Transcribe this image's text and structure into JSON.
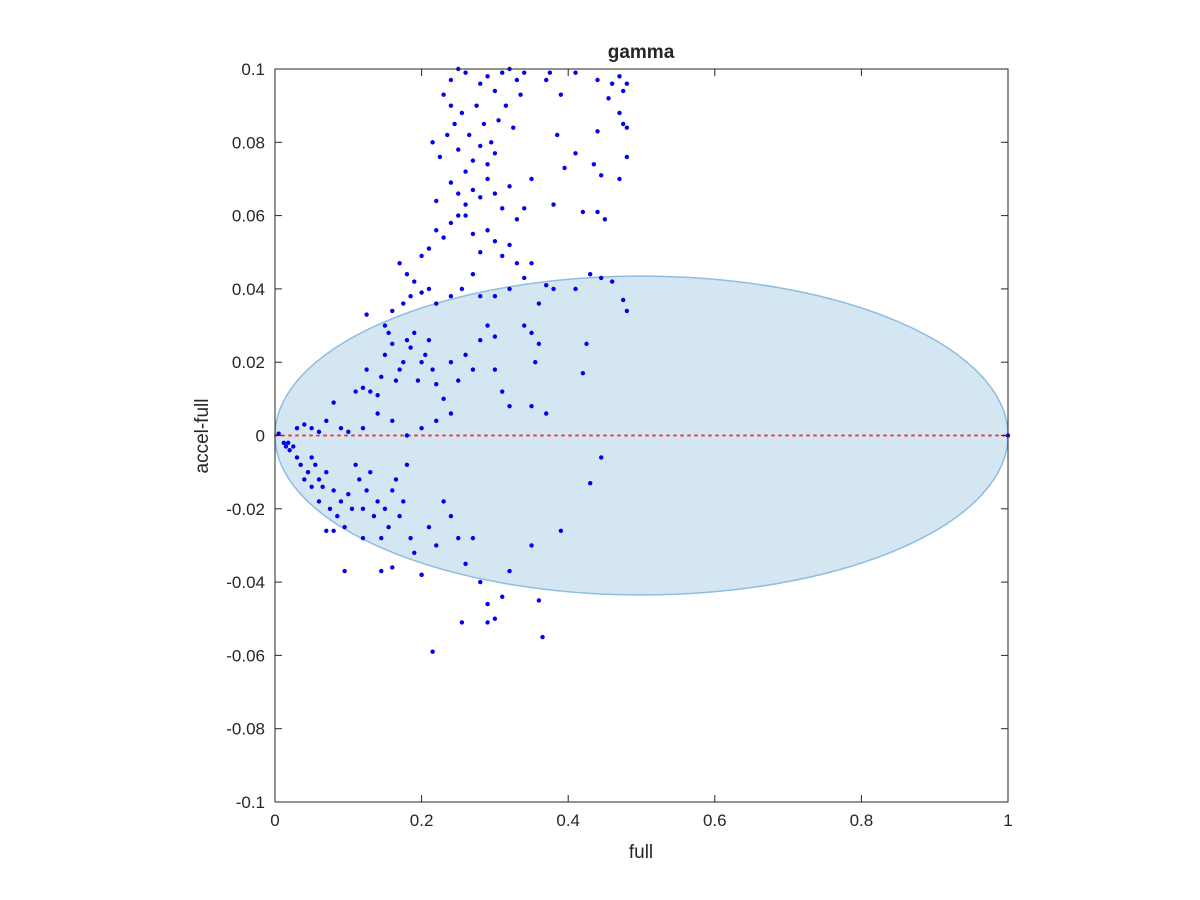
{
  "chart_data": {
    "type": "scatter",
    "title": "gamma",
    "xlabel": "full",
    "ylabel": "accel-full",
    "xlim": [
      0,
      1
    ],
    "ylim": [
      -0.1,
      0.1
    ],
    "xticks": [
      0,
      0.2,
      0.4,
      0.6,
      0.8,
      1
    ],
    "xtick_labels": [
      "0",
      "0.2",
      "0.4",
      "0.6",
      "0.8",
      "1"
    ],
    "yticks": [
      -0.1,
      -0.08,
      -0.06,
      -0.04,
      -0.02,
      0,
      0.02,
      0.04,
      0.06,
      0.08,
      0.1
    ],
    "ytick_labels": [
      "-0.1",
      "-0.08",
      "-0.06",
      "-0.04",
      "-0.02",
      "0",
      "0.02",
      "0.04",
      "0.06",
      "0.08",
      "0.1"
    ],
    "grid": false,
    "box": true,
    "reference_line": {
      "y": 0,
      "style": "dotted",
      "color": "#e8453c"
    },
    "ellipse": {
      "cx": 0.5,
      "cy": 0.0,
      "rx": 0.5,
      "ry": 0.0435,
      "fill": "#d5e6f3",
      "stroke": "#8fbde0"
    },
    "points_color": "#0000ee",
    "points": [
      [
        0.005,
        0.0005
      ],
      [
        0.012,
        -0.002
      ],
      [
        0.015,
        -0.003
      ],
      [
        0.02,
        -0.004
      ],
      [
        0.018,
        -0.002
      ],
      [
        0.025,
        -0.003
      ],
      [
        0.03,
        -0.006
      ],
      [
        0.035,
        -0.008
      ],
      [
        0.04,
        -0.012
      ],
      [
        0.045,
        -0.01
      ],
      [
        0.05,
        -0.006
      ],
      [
        0.055,
        -0.008
      ],
      [
        0.06,
        -0.012
      ],
      [
        0.065,
        -0.014
      ],
      [
        0.07,
        -0.01
      ],
      [
        0.075,
        -0.02
      ],
      [
        0.08,
        -0.015
      ],
      [
        0.085,
        -0.022
      ],
      [
        0.09,
        -0.018
      ],
      [
        0.095,
        -0.025
      ],
      [
        0.1,
        -0.016
      ],
      [
        0.105,
        -0.02
      ],
      [
        0.11,
        -0.008
      ],
      [
        0.115,
        -0.012
      ],
      [
        0.12,
        -0.02
      ],
      [
        0.125,
        -0.015
      ],
      [
        0.13,
        -0.01
      ],
      [
        0.135,
        -0.022
      ],
      [
        0.14,
        -0.018
      ],
      [
        0.145,
        -0.028
      ],
      [
        0.15,
        -0.02
      ],
      [
        0.155,
        -0.025
      ],
      [
        0.16,
        -0.015
      ],
      [
        0.165,
        -0.012
      ],
      [
        0.17,
        -0.022
      ],
      [
        0.175,
        -0.018
      ],
      [
        0.18,
        -0.008
      ],
      [
        0.185,
        -0.028
      ],
      [
        0.19,
        -0.032
      ],
      [
        0.2,
        -0.038
      ],
      [
        0.21,
        -0.025
      ],
      [
        0.22,
        -0.03
      ],
      [
        0.23,
        -0.018
      ],
      [
        0.24,
        -0.022
      ],
      [
        0.25,
        -0.028
      ],
      [
        0.26,
        -0.035
      ],
      [
        0.27,
        -0.028
      ],
      [
        0.28,
        -0.04
      ],
      [
        0.29,
        -0.046
      ],
      [
        0.3,
        -0.05
      ],
      [
        0.32,
        -0.037
      ],
      [
        0.35,
        -0.03
      ],
      [
        0.36,
        -0.045
      ],
      [
        0.365,
        -0.055
      ],
      [
        0.215,
        -0.059
      ],
      [
        0.255,
        -0.051
      ],
      [
        0.29,
        -0.051
      ],
      [
        0.31,
        -0.044
      ],
      [
        0.39,
        -0.026
      ],
      [
        0.43,
        -0.013
      ],
      [
        0.445,
        -0.006
      ],
      [
        0.2,
        -0.038
      ],
      [
        0.16,
        -0.036
      ],
      [
        0.145,
        -0.037
      ],
      [
        0.095,
        -0.037
      ],
      [
        0.12,
        -0.028
      ],
      [
        0.08,
        -0.026
      ],
      [
        0.07,
        -0.026
      ],
      [
        0.06,
        -0.018
      ],
      [
        0.05,
        -0.014
      ],
      [
        0.03,
        0.002
      ],
      [
        0.04,
        0.003
      ],
      [
        0.05,
        0.002
      ],
      [
        0.06,
        0.001
      ],
      [
        0.07,
        0.004
      ],
      [
        0.08,
        0.009
      ],
      [
        0.09,
        0.002
      ],
      [
        0.1,
        0.001
      ],
      [
        0.11,
        0.012
      ],
      [
        0.12,
        0.013
      ],
      [
        0.125,
        0.018
      ],
      [
        0.13,
        0.012
      ],
      [
        0.14,
        0.011
      ],
      [
        0.145,
        0.016
      ],
      [
        0.15,
        0.022
      ],
      [
        0.155,
        0.028
      ],
      [
        0.16,
        0.025
      ],
      [
        0.165,
        0.015
      ],
      [
        0.17,
        0.018
      ],
      [
        0.175,
        0.02
      ],
      [
        0.18,
        0.026
      ],
      [
        0.185,
        0.024
      ],
      [
        0.19,
        0.028
      ],
      [
        0.195,
        0.015
      ],
      [
        0.2,
        0.02
      ],
      [
        0.205,
        0.022
      ],
      [
        0.21,
        0.026
      ],
      [
        0.215,
        0.018
      ],
      [
        0.22,
        0.014
      ],
      [
        0.23,
        0.01
      ],
      [
        0.24,
        0.02
      ],
      [
        0.25,
        0.015
      ],
      [
        0.26,
        0.022
      ],
      [
        0.27,
        0.018
      ],
      [
        0.28,
        0.026
      ],
      [
        0.29,
        0.03
      ],
      [
        0.3,
        0.018
      ],
      [
        0.31,
        0.012
      ],
      [
        0.32,
        0.008
      ],
      [
        0.34,
        0.03
      ],
      [
        0.355,
        0.02
      ],
      [
        0.37,
        0.006
      ],
      [
        0.35,
        0.008
      ],
      [
        0.24,
        0.006
      ],
      [
        0.22,
        0.004
      ],
      [
        0.2,
        0.002
      ],
      [
        0.18,
        0.0
      ],
      [
        0.16,
        0.004
      ],
      [
        0.14,
        0.006
      ],
      [
        0.12,
        0.002
      ],
      [
        0.125,
        0.033
      ],
      [
        0.15,
        0.03
      ],
      [
        0.16,
        0.034
      ],
      [
        0.175,
        0.036
      ],
      [
        0.185,
        0.038
      ],
      [
        0.19,
        0.042
      ],
      [
        0.2,
        0.039
      ],
      [
        0.21,
        0.04
      ],
      [
        0.22,
        0.036
      ],
      [
        0.24,
        0.038
      ],
      [
        0.255,
        0.04
      ],
      [
        0.27,
        0.044
      ],
      [
        0.28,
        0.038
      ],
      [
        0.3,
        0.038
      ],
      [
        0.32,
        0.04
      ],
      [
        0.34,
        0.043
      ],
      [
        0.36,
        0.036
      ],
      [
        0.37,
        0.041
      ],
      [
        0.38,
        0.04
      ],
      [
        0.41,
        0.04
      ],
      [
        0.43,
        0.044
      ],
      [
        0.445,
        0.043
      ],
      [
        0.46,
        0.042
      ],
      [
        0.475,
        0.037
      ],
      [
        0.48,
        0.034
      ],
      [
        0.425,
        0.025
      ],
      [
        0.42,
        0.017
      ],
      [
        0.35,
        0.028
      ],
      [
        0.36,
        0.025
      ],
      [
        0.3,
        0.027
      ],
      [
        0.17,
        0.047
      ],
      [
        0.18,
        0.044
      ],
      [
        0.2,
        0.049
      ],
      [
        0.21,
        0.051
      ],
      [
        0.22,
        0.056
      ],
      [
        0.23,
        0.054
      ],
      [
        0.24,
        0.058
      ],
      [
        0.25,
        0.06
      ],
      [
        0.26,
        0.063
      ],
      [
        0.27,
        0.067
      ],
      [
        0.28,
        0.065
      ],
      [
        0.29,
        0.07
      ],
      [
        0.3,
        0.066
      ],
      [
        0.31,
        0.062
      ],
      [
        0.32,
        0.068
      ],
      [
        0.33,
        0.059
      ],
      [
        0.34,
        0.062
      ],
      [
        0.35,
        0.07
      ],
      [
        0.22,
        0.064
      ],
      [
        0.24,
        0.069
      ],
      [
        0.25,
        0.066
      ],
      [
        0.26,
        0.06
      ],
      [
        0.27,
        0.055
      ],
      [
        0.28,
        0.05
      ],
      [
        0.29,
        0.056
      ],
      [
        0.3,
        0.053
      ],
      [
        0.31,
        0.049
      ],
      [
        0.32,
        0.052
      ],
      [
        0.33,
        0.047
      ],
      [
        0.35,
        0.047
      ],
      [
        0.215,
        0.08
      ],
      [
        0.225,
        0.076
      ],
      [
        0.235,
        0.082
      ],
      [
        0.245,
        0.085
      ],
      [
        0.255,
        0.088
      ],
      [
        0.265,
        0.082
      ],
      [
        0.275,
        0.09
      ],
      [
        0.285,
        0.085
      ],
      [
        0.295,
        0.08
      ],
      [
        0.305,
        0.086
      ],
      [
        0.315,
        0.09
      ],
      [
        0.325,
        0.084
      ],
      [
        0.335,
        0.093
      ],
      [
        0.24,
        0.09
      ],
      [
        0.25,
        0.078
      ],
      [
        0.26,
        0.072
      ],
      [
        0.27,
        0.075
      ],
      [
        0.28,
        0.079
      ],
      [
        0.29,
        0.074
      ],
      [
        0.3,
        0.077
      ],
      [
        0.23,
        0.093
      ],
      [
        0.24,
        0.097
      ],
      [
        0.25,
        0.1
      ],
      [
        0.26,
        0.099
      ],
      [
        0.28,
        0.096
      ],
      [
        0.29,
        0.098
      ],
      [
        0.3,
        0.094
      ],
      [
        0.31,
        0.099
      ],
      [
        0.32,
        0.1
      ],
      [
        0.33,
        0.097
      ],
      [
        0.34,
        0.099
      ],
      [
        0.37,
        0.097
      ],
      [
        0.375,
        0.099
      ],
      [
        0.41,
        0.099
      ],
      [
        0.44,
        0.097
      ],
      [
        0.455,
        0.092
      ],
      [
        0.46,
        0.096
      ],
      [
        0.47,
        0.098
      ],
      [
        0.475,
        0.094
      ],
      [
        0.48,
        0.096
      ],
      [
        0.47,
        0.088
      ],
      [
        0.48,
        0.084
      ],
      [
        0.475,
        0.085
      ],
      [
        0.44,
        0.083
      ],
      [
        0.385,
        0.082
      ],
      [
        0.39,
        0.093
      ],
      [
        0.41,
        0.077
      ],
      [
        0.435,
        0.074
      ],
      [
        0.445,
        0.071
      ],
      [
        0.47,
        0.07
      ],
      [
        0.48,
        0.076
      ],
      [
        0.42,
        0.061
      ],
      [
        0.45,
        0.059
      ],
      [
        0.44,
        0.061
      ],
      [
        0.395,
        0.073
      ],
      [
        0.38,
        0.063
      ],
      [
        1.0,
        0.0
      ]
    ]
  }
}
